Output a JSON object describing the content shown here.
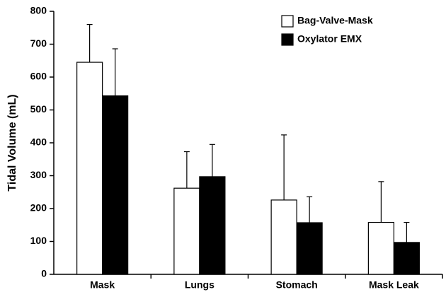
{
  "chart_data": {
    "type": "bar",
    "y_label": "Tidal Volume (mL)",
    "categories": [
      "Mask",
      "Lungs",
      "Stomach",
      "Mask Leak"
    ],
    "series": [
      {
        "name": "Bag-Valve-Mask",
        "color": "#ffffff",
        "values": [
          645,
          262,
          226,
          158
        ],
        "errors": [
          115,
          111,
          198,
          124
        ]
      },
      {
        "name": "Oxylator EMX",
        "color": "#000000",
        "values": [
          543,
          297,
          157,
          97
        ],
        "errors": [
          143,
          98,
          79,
          61
        ]
      }
    ],
    "ylim": [
      0,
      800
    ],
    "yticks": [
      0,
      100,
      200,
      300,
      400,
      500,
      600,
      700,
      800
    ],
    "legend": "upper right"
  }
}
